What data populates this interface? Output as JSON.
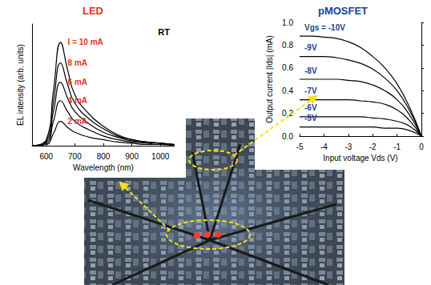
{
  "chart_data": [
    {
      "type": "line",
      "title": "LED",
      "x_label": "Wavelength (nm)",
      "y_label": "EL intensity (arb. units)",
      "annotations": [
        "RT"
      ],
      "x": [
        550,
        600,
        625,
        650,
        675,
        700,
        750,
        800,
        850,
        900,
        950,
        1000,
        1050
      ],
      "series": [
        {
          "name": "I = 10 mA",
          "color": "#000000",
          "values": [
            0,
            0.05,
            0.45,
            0.85,
            0.62,
            0.42,
            0.26,
            0.16,
            0.09,
            0.05,
            0.03,
            0.02,
            0.01
          ]
        },
        {
          "name": "8 mA",
          "color": "#000000",
          "values": [
            0,
            0.04,
            0.36,
            0.68,
            0.5,
            0.35,
            0.22,
            0.14,
            0.08,
            0.05,
            0.03,
            0.02,
            0.01
          ]
        },
        {
          "name": "6 mA",
          "color": "#000000",
          "values": [
            0,
            0.03,
            0.28,
            0.52,
            0.39,
            0.28,
            0.18,
            0.11,
            0.07,
            0.04,
            0.03,
            0.02,
            0.01
          ]
        },
        {
          "name": "4 mA",
          "color": "#000000",
          "values": [
            0,
            0.02,
            0.2,
            0.37,
            0.28,
            0.2,
            0.13,
            0.08,
            0.05,
            0.03,
            0.02,
            0.01,
            0.01
          ]
        },
        {
          "name": "2 mA",
          "color": "#000000",
          "values": [
            0,
            0.01,
            0.1,
            0.2,
            0.15,
            0.11,
            0.07,
            0.05,
            0.03,
            0.02,
            0.01,
            0.01,
            0
          ]
        }
      ],
      "xlim": [
        550,
        1050
      ],
      "xticks": [
        600,
        700,
        800,
        900,
        1000
      ],
      "ylim": [
        0,
        1
      ],
      "tick_labels": "x",
      "grid": false
    },
    {
      "type": "line",
      "title": "pMOSFET",
      "x_label": "Input voltage Vds (V)",
      "y_label": "Output current |Ids| (mA)",
      "x": [
        -5,
        -4.5,
        -4,
        -3.5,
        -3,
        -2.5,
        -2,
        -1.5,
        -1,
        -0.5,
        0
      ],
      "series": [
        {
          "name": "Vgs = -10V",
          "color": "#000000",
          "values": [
            0.88,
            0.88,
            0.87,
            0.86,
            0.83,
            0.78,
            0.7,
            0.6,
            0.46,
            0.26,
            0
          ]
        },
        {
          "name": "-9V",
          "color": "#000000",
          "values": [
            0.7,
            0.7,
            0.7,
            0.69,
            0.67,
            0.64,
            0.59,
            0.51,
            0.4,
            0.23,
            0
          ]
        },
        {
          "name": "-8V",
          "color": "#000000",
          "values": [
            0.5,
            0.5,
            0.5,
            0.5,
            0.49,
            0.48,
            0.45,
            0.4,
            0.32,
            0.19,
            0
          ]
        },
        {
          "name": "-7V",
          "color": "#000000",
          "values": [
            0.32,
            0.32,
            0.32,
            0.32,
            0.32,
            0.31,
            0.3,
            0.28,
            0.23,
            0.14,
            0
          ]
        },
        {
          "name": "-6V",
          "color": "#000000",
          "values": [
            0.17,
            0.17,
            0.17,
            0.17,
            0.17,
            0.17,
            0.16,
            0.15,
            0.13,
            0.09,
            0
          ]
        },
        {
          "name": "-5V",
          "color": "#000000",
          "values": [
            0.08,
            0.08,
            0.08,
            0.08,
            0.08,
            0.08,
            0.08,
            0.07,
            0.07,
            0.05,
            0
          ]
        }
      ],
      "xlim": [
        -5,
        0
      ],
      "xticks": [
        -5,
        -4,
        -3,
        -2,
        -1,
        0
      ],
      "ylim": [
        0,
        1
      ],
      "yticks": [
        {
          "value": 0,
          "label": "0.0"
        },
        0.2,
        0.4,
        0.6,
        0.8,
        {
          "value": 1,
          "label": "1.0"
        }
      ],
      "grid": false
    }
  ]
}
